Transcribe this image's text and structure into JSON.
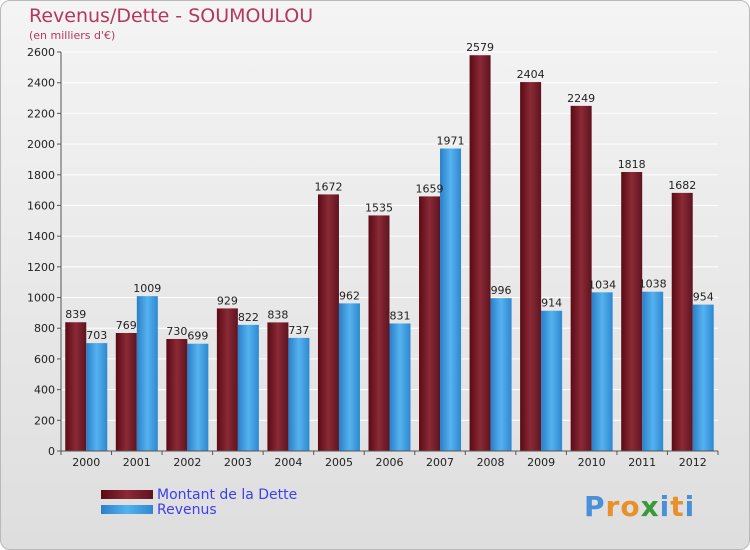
{
  "title": "Revenus/Dette - SOUMOULOU",
  "subtitle": "(en milliers d'€)",
  "logo": {
    "letters": [
      "P",
      "r",
      "o",
      "x",
      "i",
      "t",
      "i"
    ],
    "colors": [
      "#4a90d9",
      "#e8902a",
      "#e8902a",
      "#3a9a3a",
      "#4a90d9",
      "#e8902a",
      "#4a90d9"
    ]
  },
  "chart_data": {
    "type": "bar",
    "title": "Revenus/Dette - SOUMOULOU",
    "subtitle": "(en milliers d'€)",
    "categories": [
      "2000",
      "2001",
      "2002",
      "2003",
      "2004",
      "2005",
      "2006",
      "2007",
      "2008",
      "2009",
      "2010",
      "2011",
      "2012"
    ],
    "series": [
      {
        "name": "Montant de la Dette",
        "color": "#7b1e2b",
        "values": [
          839,
          769,
          730,
          929,
          838,
          1672,
          1535,
          1659,
          2579,
          2404,
          2249,
          1818,
          1682
        ]
      },
      {
        "name": "Revenus",
        "color": "#3a9fe0",
        "values": [
          703,
          1009,
          699,
          822,
          737,
          962,
          831,
          1971,
          996,
          914,
          1034,
          1038,
          954
        ]
      }
    ],
    "ylim": [
      0,
      2600
    ],
    "yticks": [
      0,
      200,
      400,
      600,
      800,
      1000,
      1200,
      1400,
      1600,
      1800,
      2000,
      2200,
      2400,
      2600
    ],
    "grid": true,
    "legend_position": "bottom-left"
  }
}
